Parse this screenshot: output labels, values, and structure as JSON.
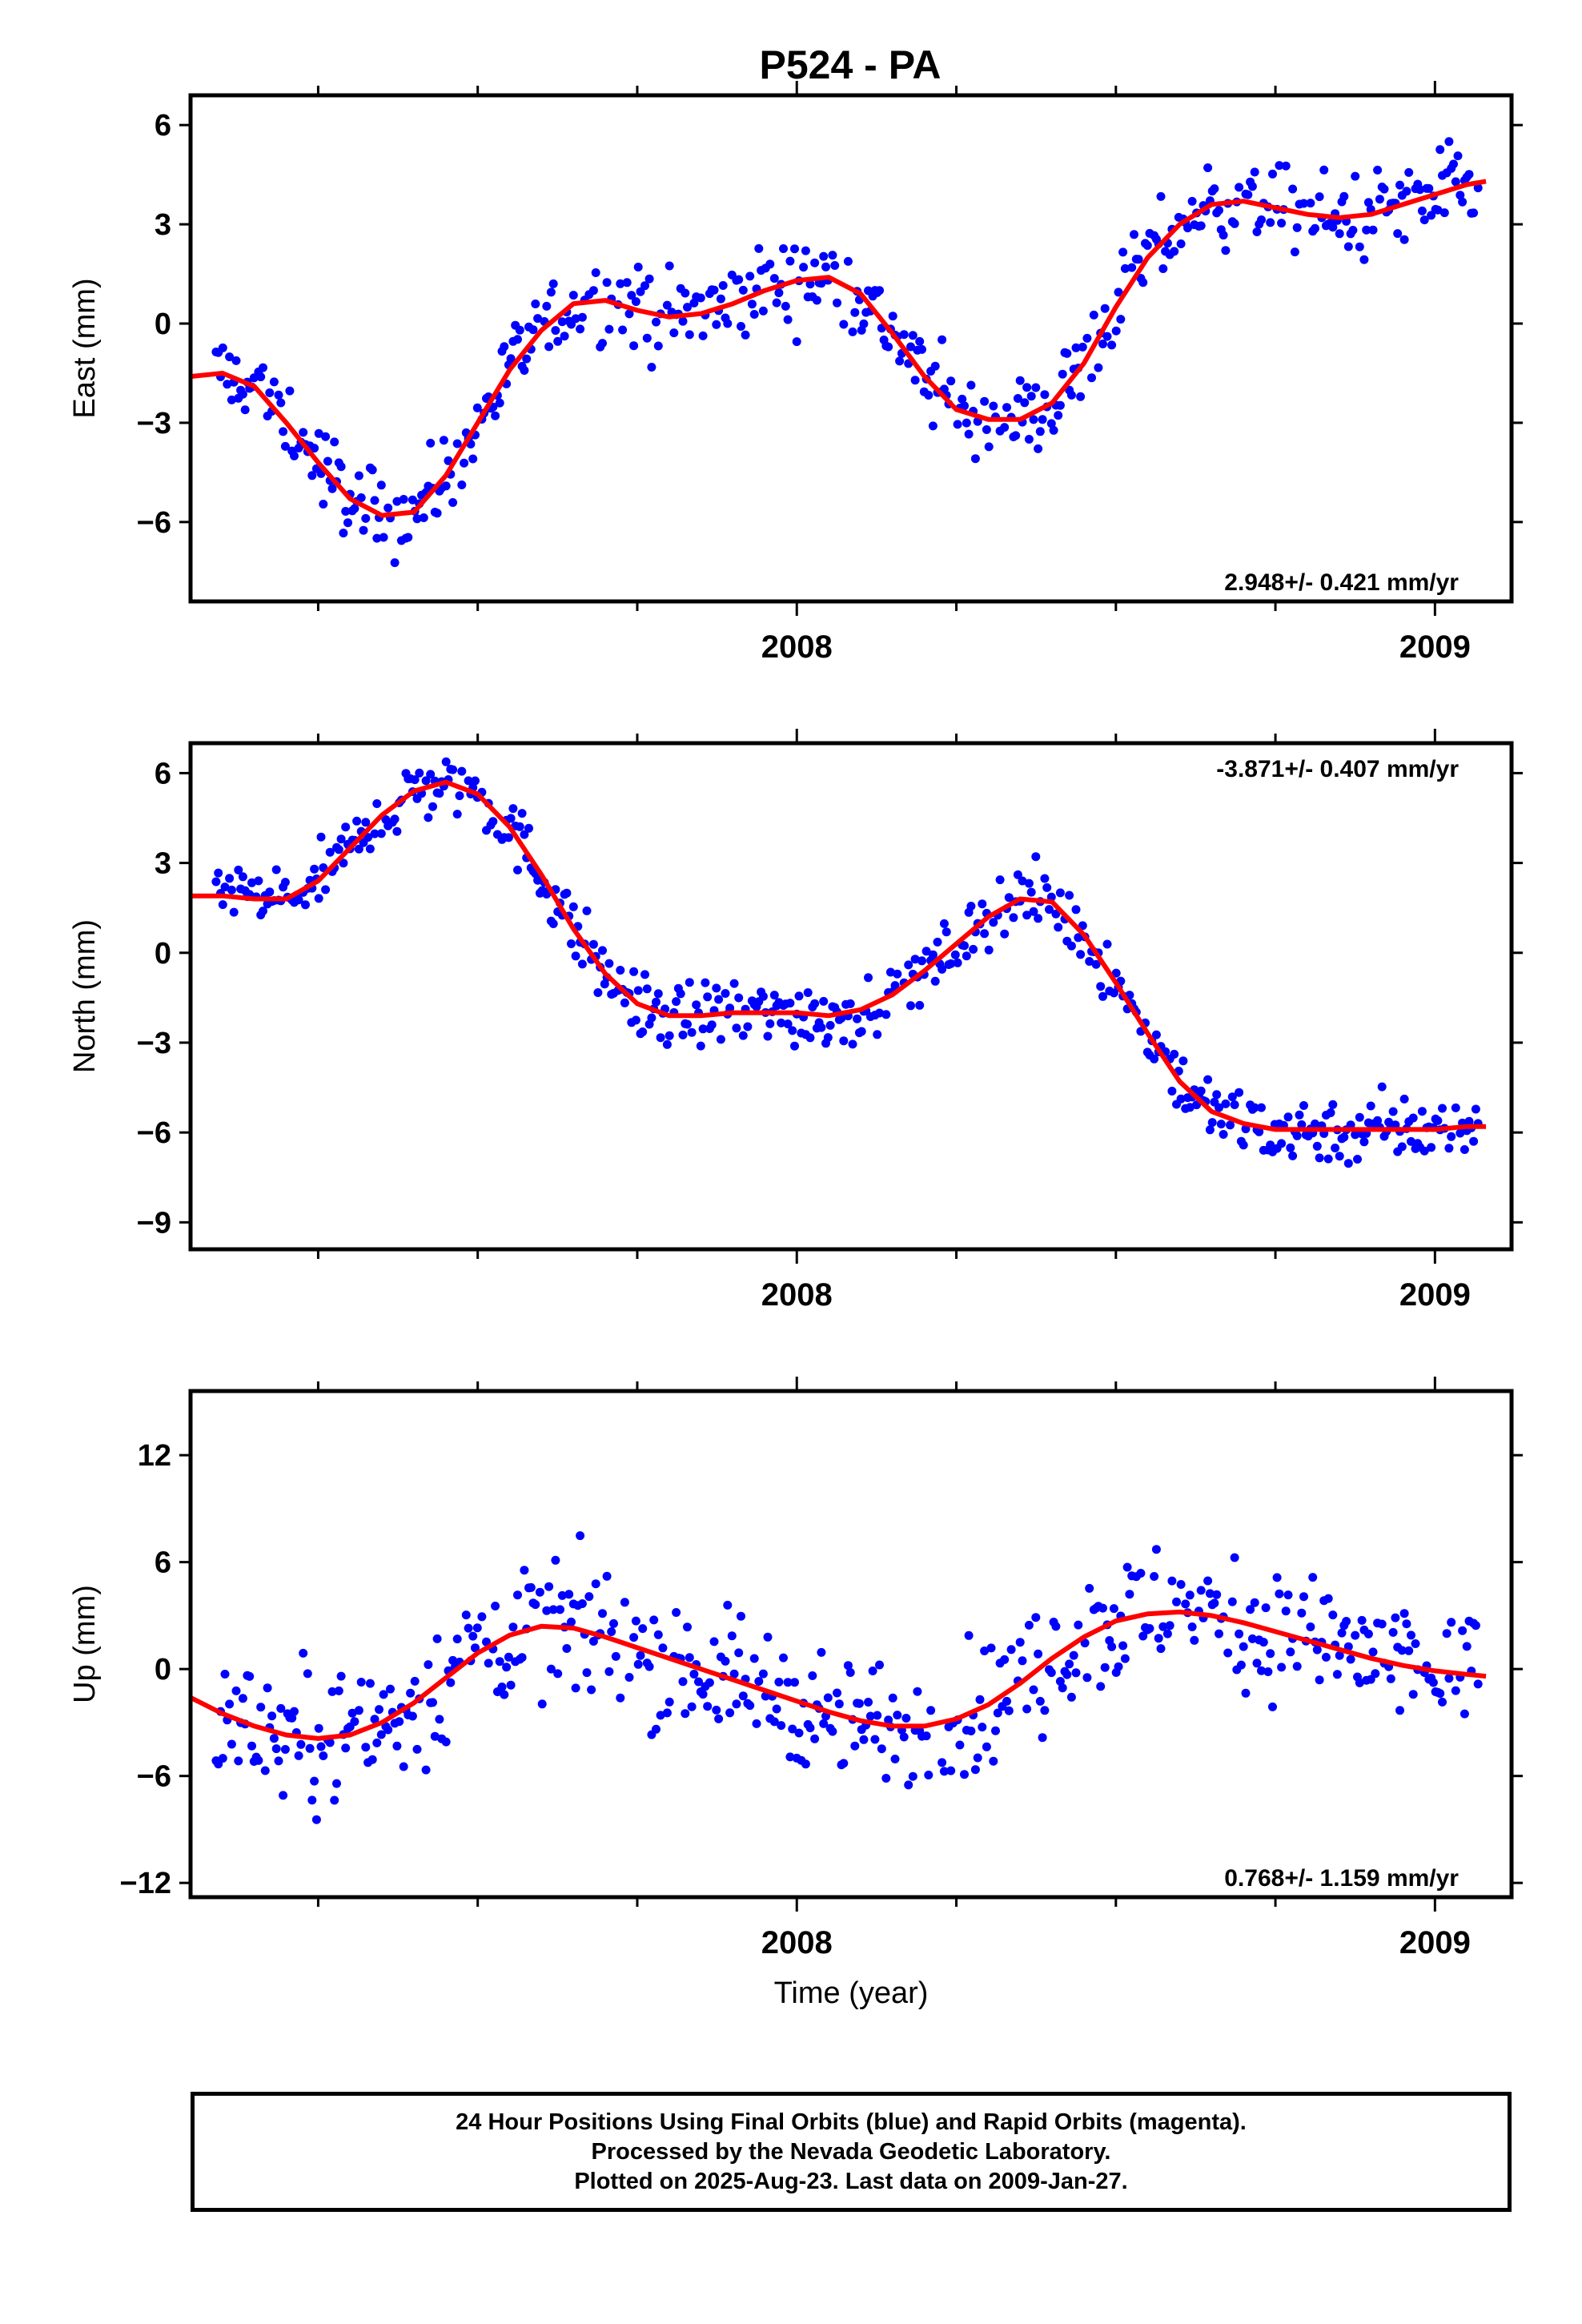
{
  "title": "P524 - PA",
  "footer": {
    "line1": "24 Hour Positions Using Final Orbits (blue) and Rapid Orbits (magenta).",
    "line2": "Processed by the Nevada Geodetic Laboratory.",
    "line3": "Plotted on 2025-Aug-23. Last data on 2009-Jan-27."
  },
  "colors": {
    "points": "#0000ff",
    "fit": "#ff0000",
    "frame": "#000000"
  },
  "chart_data": [
    {
      "type": "scatter",
      "ylabel": "East (mm)",
      "xlabel": "",
      "rate": "2.948+/- 0.421 mm/yr",
      "rate_position": "bottom-right",
      "xlim": [
        2007.05,
        2009.12
      ],
      "ylim": [
        -8.4,
        6.9
      ],
      "x_ticks": [
        2008,
        2009
      ],
      "y_ticks": [
        -6,
        -3,
        0,
        3,
        6
      ],
      "fit_curve": {
        "x": [
          2007.05,
          2007.1,
          2007.15,
          2007.2,
          2007.25,
          2007.3,
          2007.35,
          2007.4,
          2007.45,
          2007.5,
          2007.55,
          2007.6,
          2007.65,
          2007.7,
          2007.75,
          2007.8,
          2007.85,
          2007.9,
          2007.95,
          2008.0,
          2008.05,
          2008.1,
          2008.15,
          2008.2,
          2008.25,
          2008.3,
          2008.35,
          2008.4,
          2008.45,
          2008.5,
          2008.55,
          2008.6,
          2008.65,
          2008.7,
          2008.75,
          2008.8,
          2008.85,
          2008.9,
          2008.95,
          2009.0,
          2009.05,
          2009.08
        ],
        "y": [
          -1.6,
          -1.5,
          -1.9,
          -3.0,
          -4.2,
          -5.3,
          -5.8,
          -5.7,
          -4.6,
          -3.0,
          -1.4,
          -0.2,
          0.6,
          0.7,
          0.4,
          0.2,
          0.3,
          0.6,
          1.0,
          1.3,
          1.4,
          0.9,
          -0.3,
          -1.6,
          -2.6,
          -2.9,
          -2.9,
          -2.4,
          -1.2,
          0.5,
          2.0,
          3.0,
          3.6,
          3.7,
          3.5,
          3.3,
          3.2,
          3.3,
          3.6,
          3.9,
          4.2,
          4.3
        ]
      }
    },
    {
      "type": "scatter",
      "ylabel": "North (mm)",
      "xlabel": "",
      "rate": "-3.871+/- 0.407 mm/yr",
      "rate_position": "top-right",
      "xlim": [
        2007.05,
        2009.12
      ],
      "ylim": [
        -9.9,
        7.0
      ],
      "x_ticks": [
        2008,
        2009
      ],
      "y_ticks": [
        -9,
        -6,
        -3,
        0,
        3,
        6
      ],
      "fit_curve": {
        "x": [
          2007.05,
          2007.1,
          2007.15,
          2007.2,
          2007.25,
          2007.3,
          2007.35,
          2007.4,
          2007.45,
          2007.5,
          2007.55,
          2007.6,
          2007.65,
          2007.7,
          2007.75,
          2007.8,
          2007.85,
          2007.9,
          2007.95,
          2008.0,
          2008.05,
          2008.1,
          2008.15,
          2008.2,
          2008.25,
          2008.3,
          2008.35,
          2008.4,
          2008.45,
          2008.5,
          2008.55,
          2008.6,
          2008.65,
          2008.7,
          2008.75,
          2008.8,
          2008.85,
          2008.9,
          2008.95,
          2009.0,
          2009.05,
          2009.08
        ],
        "y": [
          1.9,
          1.9,
          1.8,
          1.8,
          2.4,
          3.5,
          4.6,
          5.4,
          5.7,
          5.3,
          4.2,
          2.6,
          0.8,
          -0.7,
          -1.7,
          -2.1,
          -2.1,
          -2.0,
          -2.0,
          -2.0,
          -2.1,
          -1.9,
          -1.4,
          -0.6,
          0.3,
          1.2,
          1.8,
          1.7,
          0.6,
          -1.0,
          -2.7,
          -4.3,
          -5.3,
          -5.7,
          -5.9,
          -5.9,
          -5.9,
          -5.9,
          -5.9,
          -5.9,
          -5.8,
          -5.8
        ]
      }
    },
    {
      "type": "scatter",
      "ylabel": "Up (mm)",
      "xlabel": "Time (year)",
      "rate": "0.768+/- 1.159 mm/yr",
      "rate_position": "bottom-right",
      "xlim": [
        2007.05,
        2009.12
      ],
      "ylim": [
        -12.8,
        15.6
      ],
      "x_ticks": [
        2008,
        2009
      ],
      "y_ticks": [
        -12,
        -6,
        0,
        6,
        12
      ],
      "fit_curve": {
        "x": [
          2007.05,
          2007.1,
          2007.15,
          2007.2,
          2007.25,
          2007.3,
          2007.35,
          2007.4,
          2007.45,
          2007.5,
          2007.55,
          2007.6,
          2007.65,
          2007.7,
          2007.75,
          2007.8,
          2007.85,
          2007.9,
          2007.95,
          2008.0,
          2008.05,
          2008.1,
          2008.15,
          2008.2,
          2008.25,
          2008.3,
          2008.35,
          2008.4,
          2008.45,
          2008.5,
          2008.55,
          2008.6,
          2008.65,
          2008.7,
          2008.75,
          2008.8,
          2008.85,
          2008.9,
          2008.95,
          2009.0,
          2009.05,
          2009.08
        ],
        "y": [
          -1.6,
          -2.5,
          -3.2,
          -3.7,
          -3.9,
          -3.7,
          -3.0,
          -1.9,
          -0.5,
          0.9,
          1.9,
          2.4,
          2.3,
          1.8,
          1.2,
          0.6,
          0.0,
          -0.6,
          -1.2,
          -1.8,
          -2.4,
          -2.9,
          -3.2,
          -3.2,
          -2.8,
          -2.0,
          -0.8,
          0.6,
          1.8,
          2.7,
          3.1,
          3.2,
          3.0,
          2.6,
          2.1,
          1.6,
          1.1,
          0.6,
          0.2,
          -0.1,
          -0.3,
          -0.4
        ]
      }
    }
  ]
}
